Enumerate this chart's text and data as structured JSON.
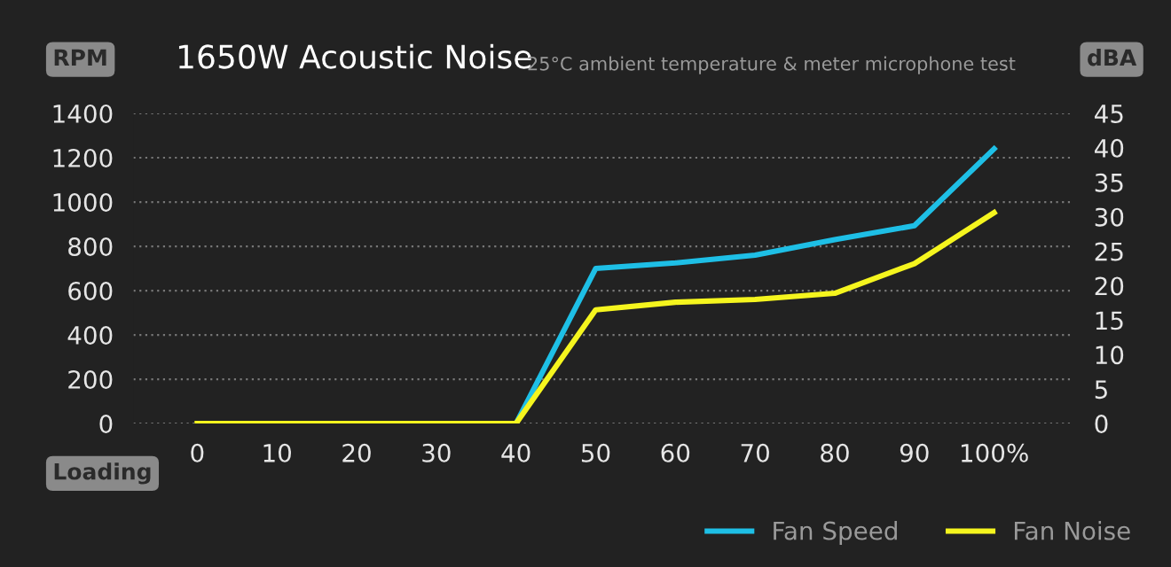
{
  "chart_data": {
    "type": "line",
    "title": "1650W Acoustic Noise",
    "subtitle": "25°C ambient temperature & meter microphone test",
    "xlabel": "Loading",
    "ylabel": "RPM",
    "y2label": "dBA",
    "x": [
      0,
      10,
      20,
      30,
      40,
      50,
      60,
      70,
      80,
      90,
      100
    ],
    "series": [
      {
        "name": "Fan Speed",
        "color": "#1ebfe6",
        "values": [
          null,
          null,
          null,
          null,
          0,
          700,
          725,
          760,
          830,
          893,
          1240
        ]
      },
      {
        "name": "Fan Noise",
        "color": "#f5f51e",
        "axis": "y2",
        "values": [
          0,
          0,
          0,
          0,
          0,
          16.5,
          17.6,
          18,
          18.9,
          23.2,
          30.6
        ]
      }
    ],
    "xlim": [
      -8,
      110
    ],
    "xticks": [
      0,
      10,
      20,
      30,
      40,
      50,
      60,
      70,
      80,
      90,
      {
        "value": 100,
        "label": "100%"
      }
    ],
    "ylim": [
      0,
      1400
    ],
    "yticks": [
      0,
      200,
      400,
      600,
      800,
      1000,
      1200,
      1400
    ],
    "y2lim": [
      0,
      45
    ],
    "y2ticks": [
      0,
      5,
      10,
      15,
      20,
      25,
      30,
      35,
      40,
      45
    ],
    "grid": "y",
    "legend": "bottom right",
    "marker": "none",
    "line_style": "solid"
  }
}
